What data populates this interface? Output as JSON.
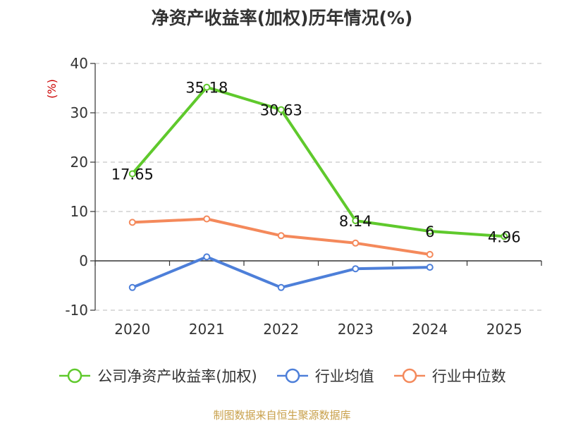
{
  "chart_data": {
    "type": "line",
    "title": "净资产收益率(加权)历年情况(%)",
    "ylabel": "(%)",
    "xlabel": "",
    "categories": [
      "2020",
      "2021",
      "2022",
      "2023",
      "2024",
      "2025"
    ],
    "ylim": [
      -10,
      40
    ],
    "yticks": [
      -10,
      0,
      10,
      20,
      30,
      40
    ],
    "grid": true,
    "legend_position": "bottom",
    "series": [
      {
        "name": "公司净资产收益率(加权)",
        "color": "#5fc92c",
        "values": [
          17.65,
          35.18,
          30.63,
          8.14,
          6,
          4.96
        ],
        "labels": [
          "17.65",
          "35.18",
          "30.63",
          "8.14",
          "6",
          "4.96"
        ]
      },
      {
        "name": "行业均值",
        "color": "#4d7fd9",
        "values": [
          -5.4,
          0.8,
          -5.4,
          -1.6,
          -1.3,
          null
        ]
      },
      {
        "name": "行业中位数",
        "color": "#f4895b",
        "values": [
          7.8,
          8.5,
          5.1,
          3.6,
          1.3,
          null
        ]
      }
    ]
  },
  "source": "制图数据来自恒生聚源数据库"
}
